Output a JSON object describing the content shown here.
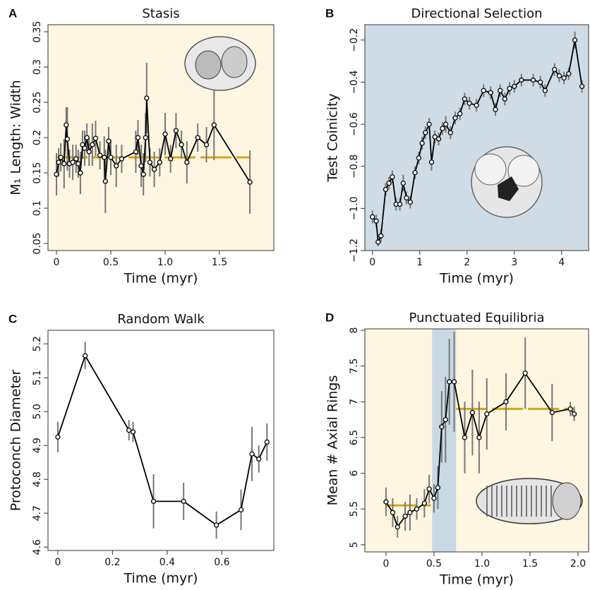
{
  "chart_data": [
    {
      "type": "line",
      "panel_label": "A",
      "title": "Stasis",
      "x_label": "Time (myr)",
      "y_label": "M₁ Length: Width",
      "background": "#fef6e0",
      "color": "#000000",
      "error_color": "#777777",
      "xlim": [
        -0.078,
        2.0
      ],
      "ylim": [
        0.04,
        0.36
      ],
      "xticks": [
        0,
        0.5,
        {
          "value": 1,
          "label": "1.0"
        },
        1.5
      ],
      "yticks": [
        0.05,
        0.1,
        0.15,
        0.2,
        0.25,
        0.3,
        0.35
      ],
      "x": [
        0,
        0.02,
        0.04,
        0.07,
        0.09,
        0.1,
        0.12,
        0.15,
        0.18,
        0.2,
        0.22,
        0.24,
        0.26,
        0.28,
        0.3,
        0.33,
        0.36,
        0.4,
        0.44,
        0.45,
        0.48,
        0.5,
        0.55,
        0.6,
        0.73,
        0.75,
        0.78,
        0.8,
        0.82,
        0.83,
        0.86,
        0.9,
        0.95,
        1.0,
        1.05,
        1.1,
        1.15,
        1.2,
        1.3,
        1.38,
        1.45,
        1.78
      ],
      "values": [
        0.148,
        0.165,
        0.172,
        0.163,
        0.218,
        0.198,
        0.163,
        0.165,
        0.17,
        0.163,
        0.15,
        0.19,
        0.185,
        0.2,
        0.18,
        0.19,
        0.199,
        0.175,
        0.172,
        0.138,
        0.195,
        0.172,
        0.16,
        0.17,
        0.18,
        0.2,
        0.16,
        0.148,
        0.2,
        0.256,
        0.165,
        0.155,
        0.165,
        0.205,
        0.17,
        0.21,
        0.19,
        0.165,
        0.2,
        0.19,
        0.218,
        0.137
      ],
      "errors": [
        0.03,
        0.02,
        0.02,
        0.035,
        0.025,
        0.045,
        0.02,
        0.025,
        0.02,
        0.02,
        0.03,
        0.02,
        0.025,
        0.02,
        0.02,
        0.03,
        0.025,
        0.02,
        0.03,
        0.045,
        0.02,
        0.025,
        0.03,
        0.02,
        0.03,
        0.025,
        0.03,
        0.03,
        0.035,
        0.05,
        0.02,
        0.025,
        0.02,
        0.03,
        0.02,
        0.025,
        0.02,
        0.03,
        0.02,
        0.025,
        0.05,
        0.045
      ],
      "reference_lines": [
        {
          "y": 0.172,
          "x": [
            0,
            1.78
          ],
          "color": "#d4a514"
        }
      ]
    },
    {
      "type": "line",
      "panel_label": "B",
      "title": "Directional Selection",
      "x_label": "Time (myr)",
      "y_label": "Test Coinicity",
      "background": "#cfdce5",
      "color": "#000000",
      "error_color": "#777777",
      "xlim": [
        -0.16,
        4.57
      ],
      "ylim": [
        -1.2,
        -0.127
      ],
      "xticks": [
        0,
        1,
        2,
        3,
        4
      ],
      "yticks": [
        {
          "value": -1.2,
          "label": "−1.2"
        },
        {
          "value": -1,
          "label": "−1.0"
        },
        {
          "value": -0.8,
          "label": "−0.8"
        },
        {
          "value": -0.6,
          "label": "−0.6"
        },
        {
          "value": -0.4,
          "label": "−0.4"
        },
        {
          "value": -0.2,
          "label": "−0.2"
        }
      ],
      "x": [
        0,
        0.08,
        0.12,
        0.18,
        0.28,
        0.35,
        0.42,
        0.5,
        0.58,
        0.65,
        0.72,
        0.8,
        0.9,
        0.98,
        1.05,
        1.12,
        1.2,
        1.25,
        1.32,
        1.4,
        1.48,
        1.55,
        1.65,
        1.75,
        1.85,
        1.95,
        2.05,
        2.2,
        2.35,
        2.5,
        2.6,
        2.7,
        2.8,
        2.9,
        3.0,
        3.15,
        3.4,
        3.55,
        3.65,
        3.85,
        3.95,
        4.05,
        4.15,
        4.28,
        4.43
      ],
      "values": [
        -1.04,
        -1.06,
        -1.16,
        -1.13,
        -0.91,
        -0.88,
        -0.85,
        -0.98,
        -0.98,
        -0.88,
        -0.95,
        -0.97,
        -0.83,
        -0.76,
        -0.69,
        -0.64,
        -0.6,
        -0.78,
        -0.66,
        -0.67,
        -0.62,
        -0.6,
        -0.64,
        -0.57,
        -0.55,
        -0.48,
        -0.5,
        -0.51,
        -0.44,
        -0.45,
        -0.53,
        -0.44,
        -0.48,
        -0.43,
        -0.42,
        -0.39,
        -0.39,
        -0.4,
        -0.44,
        -0.34,
        -0.37,
        -0.38,
        -0.36,
        -0.2,
        -0.42
      ],
      "errors": [
        0.03,
        0.03,
        0.02,
        0.03,
        0.03,
        0.03,
        0.03,
        0.03,
        0.03,
        0.04,
        0.03,
        0.03,
        0.03,
        0.03,
        0.03,
        0.03,
        0.03,
        0.04,
        0.03,
        0.03,
        0.03,
        0.04,
        0.03,
        0.03,
        0.03,
        0.03,
        0.03,
        0.03,
        0.03,
        0.03,
        0.03,
        0.03,
        0.03,
        0.03,
        0.03,
        0.03,
        0.03,
        0.03,
        0.03,
        0.03,
        0.03,
        0.03,
        0.03,
        0.04,
        0.03
      ]
    },
    {
      "type": "line",
      "panel_label": "C",
      "title": "Random Walk",
      "x_label": "Time (myr)",
      "y_label": "Protoconch Diameter",
      "background": "#ffffff",
      "color": "#000000",
      "error_color": "#777777",
      "xlim": [
        -0.036,
        0.79
      ],
      "ylim": [
        4.59,
        5.24
      ],
      "xticks": [
        0,
        0.2,
        0.4,
        0.6
      ],
      "yticks": [
        4.6,
        4.7,
        4.8,
        4.9,
        {
          "value": 5,
          "label": "5.0"
        },
        5.1,
        5.2
      ],
      "x": [
        0,
        0.1,
        0.26,
        0.275,
        0.35,
        0.46,
        0.58,
        0.67,
        0.71,
        0.735,
        0.765
      ],
      "values": [
        4.925,
        5.165,
        4.945,
        4.94,
        4.735,
        4.735,
        4.665,
        4.71,
        4.875,
        4.86,
        4.91
      ],
      "errors": [
        0.045,
        0.04,
        0.03,
        0.03,
        0.08,
        0.055,
        0.04,
        0.06,
        0.08,
        0.04,
        0.055
      ]
    },
    {
      "type": "line",
      "panel_label": "D",
      "title": "Punctuated Equilibria",
      "x_label": "Time (myr)",
      "y_label": "Mean # Axial Rings",
      "background": "#fef6e0",
      "color": "#000000",
      "error_color": "#777777",
      "xlim": [
        -0.22,
        2.11
      ],
      "ylim": [
        4.9,
        8.02
      ],
      "xticks": [
        0,
        0.5,
        {
          "value": 1,
          "label": "1.0"
        },
        1.5,
        {
          "value": 2,
          "label": "2.0"
        }
      ],
      "yticks": [
        5,
        5.5,
        6,
        6.5,
        7,
        7.5,
        8
      ],
      "x": [
        0,
        0.07,
        0.12,
        0.2,
        0.25,
        0.32,
        0.4,
        0.45,
        0.5,
        0.54,
        0.58,
        0.62,
        0.66,
        0.71,
        0.82,
        0.9,
        0.97,
        1.05,
        1.25,
        1.45,
        1.73,
        1.92,
        1.96
      ],
      "values": [
        5.6,
        5.45,
        5.25,
        5.4,
        5.45,
        5.5,
        5.58,
        5.78,
        5.65,
        5.8,
        6.65,
        6.75,
        7.28,
        7.28,
        6.5,
        6.85,
        6.5,
        6.83,
        7.0,
        7.4,
        6.85,
        6.9,
        6.83
      ],
      "errors": [
        0.2,
        0.2,
        0.15,
        0.2,
        0.25,
        0.15,
        0.2,
        0.2,
        0.2,
        0.3,
        0.5,
        0.6,
        0.6,
        0.7,
        0.5,
        0.6,
        0.5,
        0.5,
        0.4,
        0.5,
        0.4,
        0.1,
        0.1
      ],
      "shaded_regions": [
        {
          "x": [
            0.48,
            0.73
          ],
          "color": "#c9d9e3"
        }
      ],
      "reference_lines": [
        {
          "y": 5.55,
          "x": [
            0,
            0.47
          ],
          "color": "#d4a514"
        },
        {
          "y": 6.9,
          "x": [
            0.73,
            1.96
          ],
          "color": "#d4a514"
        }
      ]
    }
  ]
}
